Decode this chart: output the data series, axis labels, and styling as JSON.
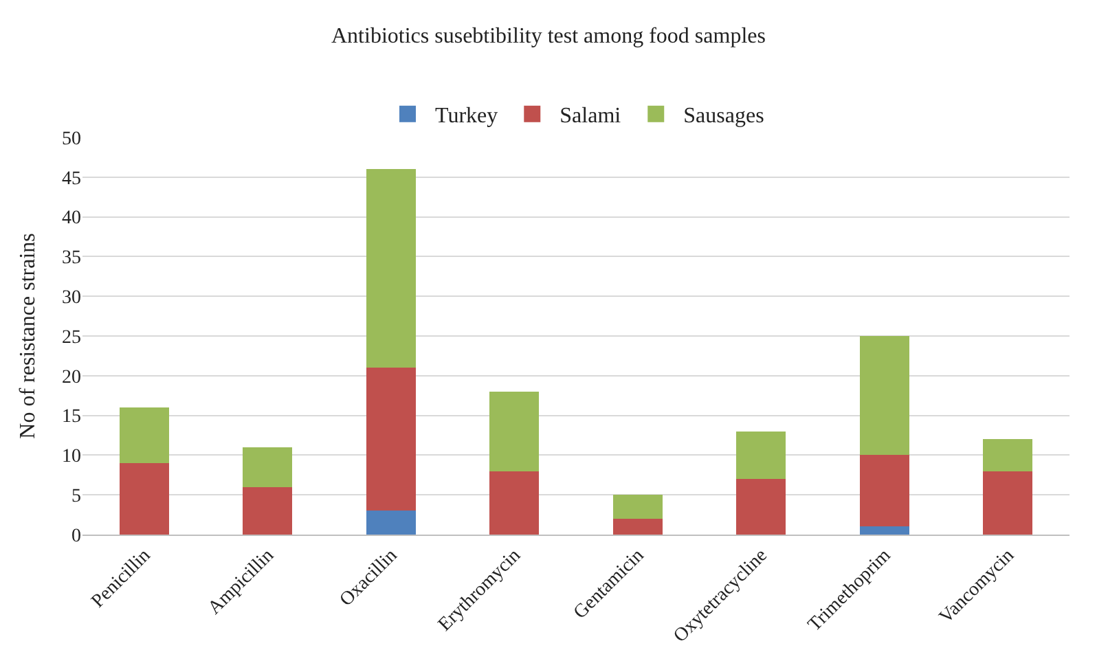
{
  "chart_data": {
    "type": "bar",
    "title": "Antibiotics susebtibility test among food samples",
    "ylabel": "No of resistance strains",
    "categories": [
      "Penicillin",
      "Ampicillin",
      "Oxacillin",
      "Erythromycin",
      "Gentamicin",
      "Oxytetracycline",
      "Trimethoprim",
      "Vancomycin"
    ],
    "series": [
      {
        "name": "Turkey",
        "color": "#4f81bd",
        "values": [
          0,
          0,
          3,
          0,
          0,
          0,
          1,
          0
        ]
      },
      {
        "name": "Salami",
        "color": "#c0504d",
        "values": [
          9,
          6,
          18,
          8,
          2,
          7,
          9,
          8
        ]
      },
      {
        "name": "Sausages",
        "color": "#9bbb59",
        "values": [
          7,
          5,
          25,
          10,
          3,
          6,
          15,
          4
        ]
      }
    ],
    "stacked": true,
    "ylim": [
      0,
      50
    ],
    "yticks": [
      0,
      5,
      10,
      15,
      20,
      25,
      30,
      35,
      40,
      45,
      50
    ],
    "grid": "y",
    "legend": "top"
  }
}
